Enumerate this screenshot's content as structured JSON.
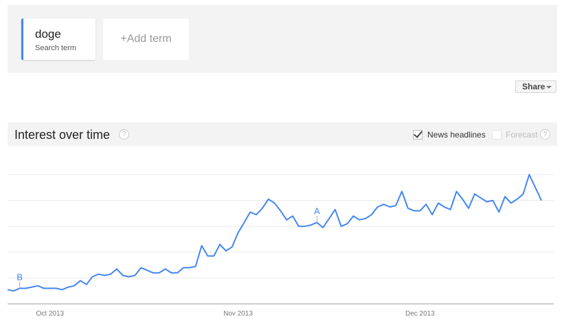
{
  "search_terms": [
    {
      "term": "doge",
      "subtitle": "Search term",
      "color": "#4285f4"
    }
  ],
  "add_term_label": "+Add term",
  "share_label": "Share",
  "section": {
    "title": "Interest over time",
    "help_icon": "?",
    "news_headlines": {
      "label": "News headlines",
      "checked": true
    },
    "forecast": {
      "label": "Forecast",
      "checked": false
    }
  },
  "chart_data": {
    "type": "line",
    "title": "",
    "xlabel": "",
    "ylabel": "",
    "ylim": [
      0,
      100
    ],
    "grid": true,
    "x_start": "2013-09-24",
    "x_end": "2013-12-21",
    "x_ticks": [
      {
        "date": "2013-10-01",
        "label": "Oct 2013"
      },
      {
        "date": "2013-11-01",
        "label": "Nov 2013"
      },
      {
        "date": "2013-12-01",
        "label": "Dec 2013"
      }
    ],
    "series": [
      {
        "color": "#4285f4",
        "values": [
          11,
          10,
          12,
          12,
          13,
          14,
          12,
          12,
          12,
          11,
          13,
          14,
          18,
          15,
          21,
          23,
          22,
          23,
          27,
          22,
          21,
          22,
          28,
          26,
          24,
          24,
          27,
          24,
          24,
          28,
          28,
          29,
          45,
          37,
          37,
          46,
          41,
          44,
          55,
          63,
          71,
          69,
          74,
          81,
          78,
          72,
          65,
          68,
          60,
          60,
          61,
          63,
          59,
          66,
          73,
          60,
          62,
          68,
          65,
          66,
          69,
          75,
          77,
          75,
          76,
          87,
          74,
          72,
          72,
          77,
          69,
          78,
          75,
          73,
          87,
          81,
          74,
          85,
          82,
          79,
          80,
          71,
          83,
          78,
          81,
          85,
          100,
          90,
          80
        ]
      }
    ],
    "annotations": [
      {
        "letter": "B",
        "date": "2013-09-26"
      },
      {
        "letter": "A",
        "date": "2013-11-14"
      }
    ]
  }
}
